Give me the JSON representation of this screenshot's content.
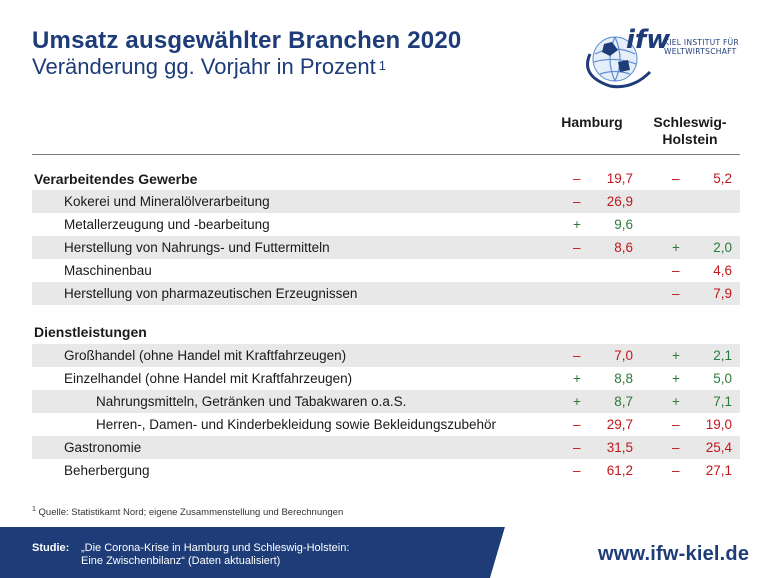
{
  "header": {
    "title": "Umsatz ausgewählter Branchen 2020",
    "subtitle": "Veränderung gg. Vorjahr in Prozent",
    "subtitle_note": "1"
  },
  "logo": {
    "wordmark": "ifw",
    "line1": "KIEL INSTITUT FÜR",
    "line2": "WELTWIRTSCHAFT",
    "colors": {
      "blue": "#1d3c78",
      "light_blue": "#5b8fd0"
    }
  },
  "columns": {
    "col1": "Hamburg",
    "col2_line1": "Schleswig-",
    "col2_line2": "Holstein"
  },
  "colors": {
    "negative": "#c0171d",
    "positive": "#2c7a3a",
    "accent": "#1d3c78",
    "shade": "#e8e8e8"
  },
  "rows": [
    {
      "label": "Verarbeitendes Gewerbe",
      "section": true,
      "shade": false,
      "indent": 0,
      "hh_sign": "–",
      "hh": "19,7",
      "sh_sign": "–",
      "sh": "5,2"
    },
    {
      "label": "Kokerei und Mineralölverarbeitung",
      "section": false,
      "shade": true,
      "indent": 1,
      "hh_sign": "–",
      "hh": "26,9",
      "sh_sign": "",
      "sh": ""
    },
    {
      "label": "Metallerzeugung und -bearbeitung",
      "section": false,
      "shade": false,
      "indent": 1,
      "hh_sign": "+",
      "hh": "9,6",
      "sh_sign": "",
      "sh": ""
    },
    {
      "label": "Herstellung von Nahrungs- und Futtermitteln",
      "section": false,
      "shade": true,
      "indent": 1,
      "hh_sign": "–",
      "hh": "8,6",
      "sh_sign": "+",
      "sh": "2,0"
    },
    {
      "label": "Maschinenbau",
      "section": false,
      "shade": false,
      "indent": 1,
      "hh_sign": "",
      "hh": "",
      "sh_sign": "–",
      "sh": "4,6"
    },
    {
      "label": "Herstellung von pharmazeutischen Erzeugnissen",
      "section": false,
      "shade": true,
      "indent": 1,
      "hh_sign": "",
      "hh": "",
      "sh_sign": "–",
      "sh": "7,9"
    },
    {
      "label": "Dienstleistungen",
      "section": true,
      "shade": false,
      "indent": 0,
      "hh_sign": "",
      "hh": "",
      "sh_sign": "",
      "sh": ""
    },
    {
      "label": "Großhandel (ohne Handel mit Kraftfahrzeugen)",
      "section": false,
      "shade": true,
      "indent": 1,
      "hh_sign": "–",
      "hh": "7,0",
      "sh_sign": "+",
      "sh": "2,1"
    },
    {
      "label": "Einzelhandel (ohne Handel mit Kraftfahrzeugen)",
      "section": false,
      "shade": false,
      "indent": 1,
      "hh_sign": "+",
      "hh": "8,8",
      "sh_sign": "+",
      "sh": "5,0"
    },
    {
      "label": "Nahrungsmitteln, Getränken und Tabakwaren o.a.S.",
      "section": false,
      "shade": true,
      "indent": 2,
      "hh_sign": "+",
      "hh": "8,7",
      "sh_sign": "+",
      "sh": "7,1"
    },
    {
      "label": "Herren-, Damen- und Kinderbekleidung sowie Bekleidungszubehör",
      "section": false,
      "shade": false,
      "indent": 2,
      "hh_sign": "–",
      "hh": "29,7",
      "sh_sign": "–",
      "sh": "19,0"
    },
    {
      "label": "Gastronomie",
      "section": false,
      "shade": true,
      "indent": 1,
      "hh_sign": "–",
      "hh": "31,5",
      "sh_sign": "–",
      "sh": "25,4"
    },
    {
      "label": "Beherbergung",
      "section": false,
      "shade": false,
      "indent": 1,
      "hh_sign": "–",
      "hh": "61,2",
      "sh_sign": "–",
      "sh": "27,1"
    }
  ],
  "footnote": {
    "mark": "1",
    "text": "Quelle: Statistikamt Nord; eigene Zusammenstellung und Berechnungen"
  },
  "footer": {
    "study_label": "Studie:",
    "study_line1": "„Die Corona-Krise in Hamburg und Schleswig-Holstein:",
    "study_line2": "Eine Zwischenbilanz“ (Daten aktualisiert)",
    "url": "www.ifw-kiel.de",
    "colors": {
      "band": "#1d3c78"
    }
  }
}
